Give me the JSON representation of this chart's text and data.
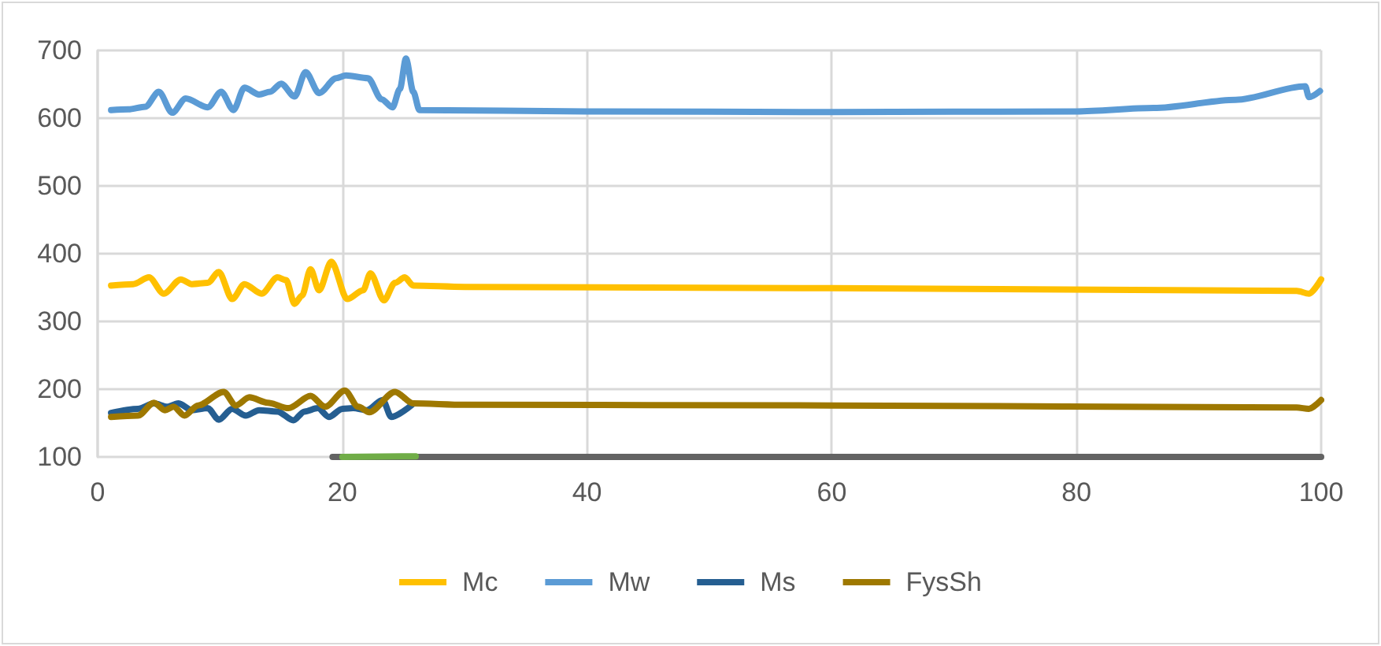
{
  "chart_data": {
    "type": "line",
    "xlim": [
      0,
      100
    ],
    "xticks": [
      0,
      20,
      40,
      60,
      80,
      100
    ],
    "ylim": [
      100,
      700
    ],
    "yticks": [
      100,
      200,
      300,
      400,
      500,
      600,
      700
    ],
    "grid": true,
    "legend": "bottom",
    "marker": "none",
    "line_style": "solid",
    "series": [
      {
        "name": "Mc",
        "color": "#ffc000",
        "x": [
          1.1,
          2.9,
          4.2,
          5.4,
          6.8,
          7.7,
          9,
          9.9,
          11,
          12,
          13.4,
          14.7,
          15.4,
          16.1,
          16.7,
          17.4,
          18.1,
          19.1,
          20.4,
          21.7,
          22.3,
          23.4,
          24.3,
          25.1,
          25.8,
          30,
          60,
          98,
          99,
          100
        ],
        "values": [
          353,
          355,
          365,
          341,
          362,
          355,
          357,
          373,
          333,
          355,
          341,
          365,
          361,
          326,
          338,
          377,
          346,
          388,
          333,
          346,
          371,
          331,
          357,
          365,
          353,
          351,
          349,
          345,
          341,
          362
        ]
      },
      {
        "name": "Mw",
        "color": "#5b9bd5",
        "x": [
          1.1,
          2.5,
          3.9,
          5,
          6.1,
          7.2,
          9,
          10.1,
          11.1,
          12,
          13.2,
          14.1,
          15,
          16.1,
          17,
          18.1,
          19.5,
          20.3,
          22.1,
          23.2,
          24.1,
          24.7,
          25.2,
          25.8,
          26.3,
          40,
          60,
          80,
          86.3,
          93,
          98.7,
          99,
          99.9
        ],
        "values": [
          612,
          613,
          617,
          639,
          608,
          629,
          616,
          639,
          612,
          645,
          635,
          639,
          651,
          632,
          668,
          637,
          659,
          663,
          659,
          628,
          616,
          643,
          688,
          639,
          612,
          610,
          609,
          610,
          615,
          627,
          647,
          631,
          640
        ]
      },
      {
        "name": "Ms",
        "color": "#255e91",
        "x": [
          1.1,
          3.3,
          4.6,
          5.7,
          6.6,
          7.7,
          9,
          9.9,
          11,
          12.1,
          13.2,
          14.7,
          16,
          16.9,
          18,
          18.9,
          20,
          20.9,
          22,
          23.3,
          24,
          25.7
        ],
        "values": [
          165,
          171,
          179,
          174,
          179,
          169,
          172,
          155,
          171,
          161,
          169,
          167,
          154,
          167,
          172,
          159,
          171,
          172,
          169,
          184,
          159,
          177
        ]
      },
      {
        "name": "FysSh",
        "color": "#9e7800",
        "x": [
          1.1,
          3.3,
          4.6,
          5.5,
          6.2,
          7.1,
          8.2,
          10.3,
          11.3,
          12.4,
          13.9,
          15.6,
          17.4,
          18.6,
          20.2,
          21.3,
          22.2,
          24.3,
          25.8,
          30,
          60,
          98,
          99,
          100
        ],
        "values": [
          159,
          161,
          180,
          169,
          174,
          161,
          176,
          196,
          176,
          188,
          180,
          172,
          190,
          174,
          198,
          174,
          166,
          196,
          179,
          177,
          176,
          173,
          171,
          184
        ]
      },
      {
        "color": "#636363",
        "x": [
          19.2,
          100
        ],
        "values": [
          100,
          100
        ]
      },
      {
        "color": "#70ad47",
        "x": [
          20,
          26
        ],
        "values": [
          100,
          101
        ]
      }
    ]
  }
}
